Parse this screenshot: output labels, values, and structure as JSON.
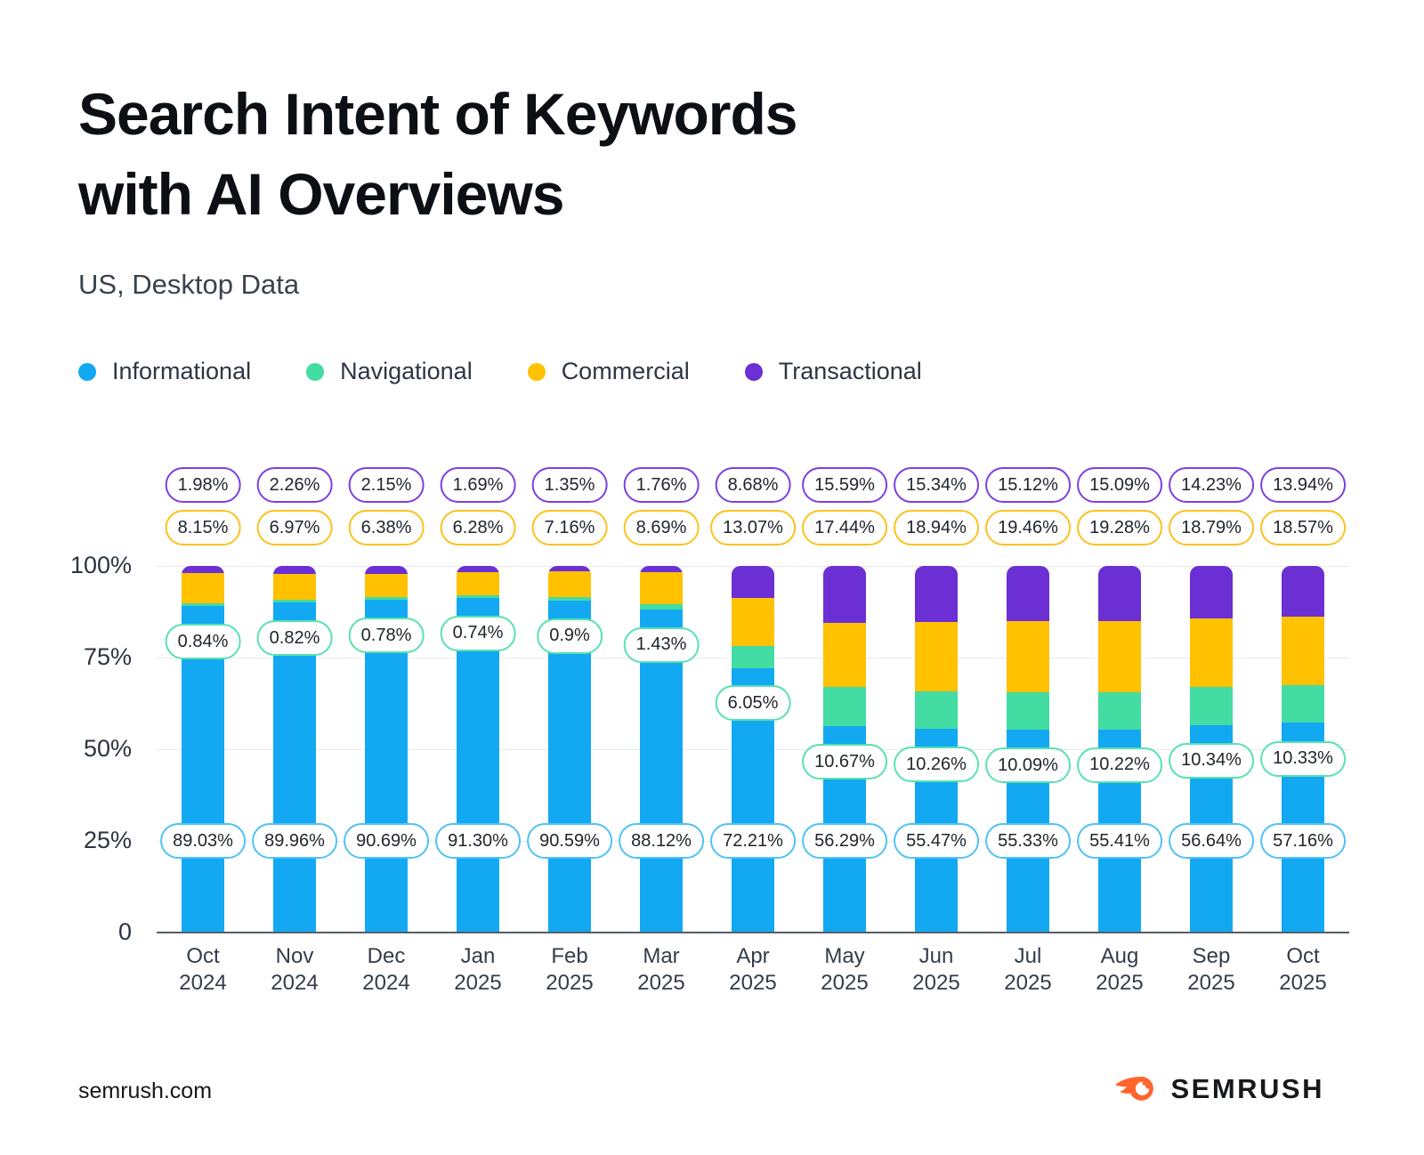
{
  "page": {
    "title": "Search Intent of Keywords\nwith AI Overviews",
    "subtitle": "US, Desktop Data",
    "footer_left": "semrush.com",
    "brand": "SEMRUSH",
    "brand_color": "#ff642d"
  },
  "chart_data": {
    "type": "bar",
    "stacked": true,
    "unit": "percent",
    "title": "Search Intent of Keywords with AI Overviews",
    "subtitle": "US, Desktop Data",
    "grid": true,
    "legend_position": "top",
    "ylim": [
      0,
      100
    ],
    "y_ticks": [
      "100%",
      "75%",
      "50%",
      "25%",
      "0"
    ],
    "categories": [
      {
        "month": "Oct",
        "year": "2024"
      },
      {
        "month": "Nov",
        "year": "2024"
      },
      {
        "month": "Dec",
        "year": "2024"
      },
      {
        "month": "Jan",
        "year": "2025"
      },
      {
        "month": "Feb",
        "year": "2025"
      },
      {
        "month": "Mar",
        "year": "2025"
      },
      {
        "month": "Apr",
        "year": "2025"
      },
      {
        "month": "May",
        "year": "2025"
      },
      {
        "month": "Jun",
        "year": "2025"
      },
      {
        "month": "Jul",
        "year": "2025"
      },
      {
        "month": "Aug",
        "year": "2025"
      },
      {
        "month": "Sep",
        "year": "2025"
      },
      {
        "month": "Oct",
        "year": "2025"
      }
    ],
    "series": [
      {
        "name": "Informational",
        "color": "#12a9f2",
        "badge_border": "#4fc2f6",
        "values": [
          89.03,
          89.96,
          90.69,
          91.3,
          90.59,
          88.12,
          72.21,
          56.29,
          55.47,
          55.33,
          55.41,
          56.64,
          57.16
        ],
        "labels": [
          "89.03%",
          "89.96%",
          "90.69%",
          "91.30%",
          "90.59%",
          "88.12%",
          "72.21%",
          "56.29%",
          "55.47%",
          "55.33%",
          "55.41%",
          "56.64%",
          "57.16%"
        ]
      },
      {
        "name": "Navigational",
        "color": "#43dca2",
        "badge_border": "#58e2ae",
        "values": [
          0.84,
          0.82,
          0.78,
          0.74,
          0.9,
          1.43,
          6.05,
          10.67,
          10.26,
          10.09,
          10.22,
          10.34,
          10.33
        ],
        "labels": [
          "0.84%",
          "0.82%",
          "0.78%",
          "0.74%",
          "0.9%",
          "1.43%",
          "6.05%",
          "10.67%",
          "10.26%",
          "10.09%",
          "10.22%",
          "10.34%",
          "10.33%"
        ]
      },
      {
        "name": "Commercial",
        "color": "#ffc100",
        "badge_border": "#fdc11e",
        "values": [
          8.15,
          6.97,
          6.38,
          6.28,
          7.16,
          8.69,
          13.07,
          17.44,
          18.94,
          19.46,
          19.28,
          18.79,
          18.57
        ],
        "labels": [
          "8.15%",
          "6.97%",
          "6.38%",
          "6.28%",
          "7.16%",
          "8.69%",
          "13.07%",
          "17.44%",
          "18.94%",
          "19.46%",
          "19.28%",
          "18.79%",
          "18.57%"
        ]
      },
      {
        "name": "Transactional",
        "color": "#6b2fd3",
        "badge_border": "#7c3fe2",
        "values": [
          1.98,
          2.26,
          2.15,
          1.69,
          1.35,
          1.76,
          8.68,
          15.59,
          15.34,
          15.12,
          15.09,
          14.23,
          13.94
        ],
        "labels": [
          "1.98%",
          "2.26%",
          "2.15%",
          "1.69%",
          "1.35%",
          "1.76%",
          "8.68%",
          "15.59%",
          "15.34%",
          "15.12%",
          "15.09%",
          "14.23%",
          "13.94%"
        ]
      }
    ]
  }
}
